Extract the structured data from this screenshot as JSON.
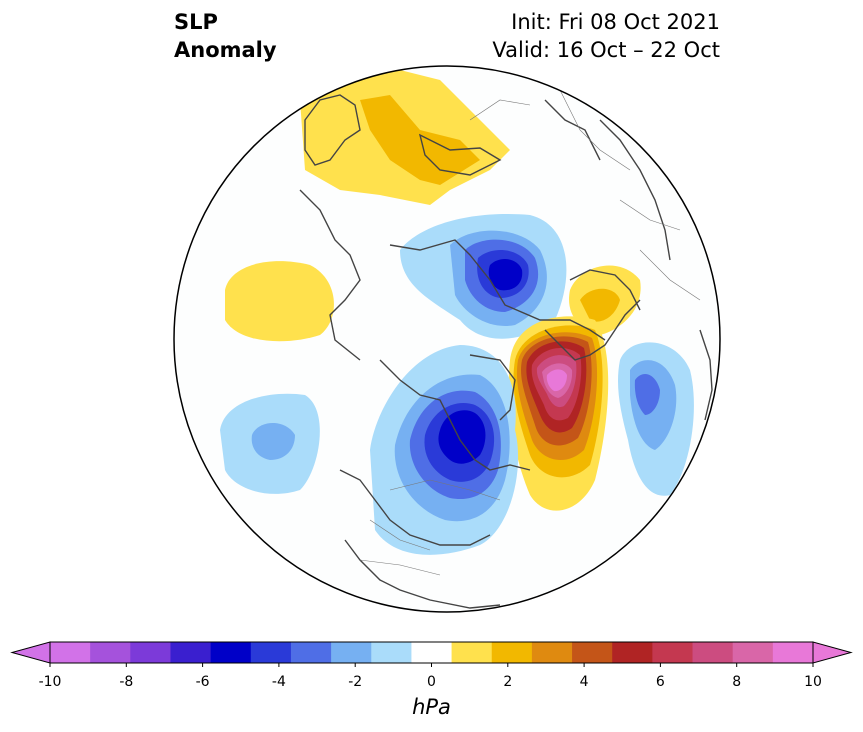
{
  "title": {
    "line1": "SLP",
    "line2": "Anomaly",
    "init": "Init: Fri 08 Oct 2021",
    "valid": "Valid: 16 Oct – 22 Oct"
  },
  "colorbar": {
    "unit": "hPa",
    "tick_labels": [
      "-10",
      "-8",
      "-6",
      "-4",
      "-2",
      "0",
      "2",
      "4",
      "6",
      "8",
      "10"
    ],
    "levels": [
      -10,
      -9,
      -8,
      -7,
      -6,
      -5,
      -4,
      -3,
      -2,
      -1,
      1,
      2,
      3,
      4,
      5,
      6,
      7,
      8,
      9,
      10
    ],
    "colors": [
      "#d272e8",
      "#a552dc",
      "#7c3ad9",
      "#3a1fcf",
      "#0000c8",
      "#2a3ad8",
      "#4f6ee6",
      "#76b0f2",
      "#aadcfa",
      "#ffffff",
      "#ffe14d",
      "#f2b800",
      "#df8a10",
      "#c45518",
      "#b02424",
      "#c43850",
      "#cc4c80",
      "#d966a8",
      "#e878d8"
    ],
    "extend_low_color": "#d272e8",
    "extend_high_color": "#e878d8"
  },
  "map": {
    "projection": "north-polar-stereographic",
    "anomalies": [
      {
        "region": "northern-russia-kara-sea",
        "sign": "positive",
        "peak_hpa": 3
      },
      {
        "region": "north-pacific-gulf-of-alaska",
        "sign": "positive",
        "peak_hpa": 1
      },
      {
        "region": "barents-sea-scandinavia",
        "sign": "negative",
        "peak_hpa": -6
      },
      {
        "region": "western-europe",
        "sign": "positive",
        "peak_hpa": 3
      },
      {
        "region": "central-north-atlantic",
        "sign": "positive",
        "peak_hpa": 10
      },
      {
        "region": "hudson-bay-canada",
        "sign": "negative",
        "peak_hpa": -6
      },
      {
        "region": "western-atlantic-south",
        "sign": "negative",
        "peak_hpa": -4
      },
      {
        "region": "north-pacific-south",
        "sign": "negative",
        "peak_hpa": -3
      }
    ]
  }
}
